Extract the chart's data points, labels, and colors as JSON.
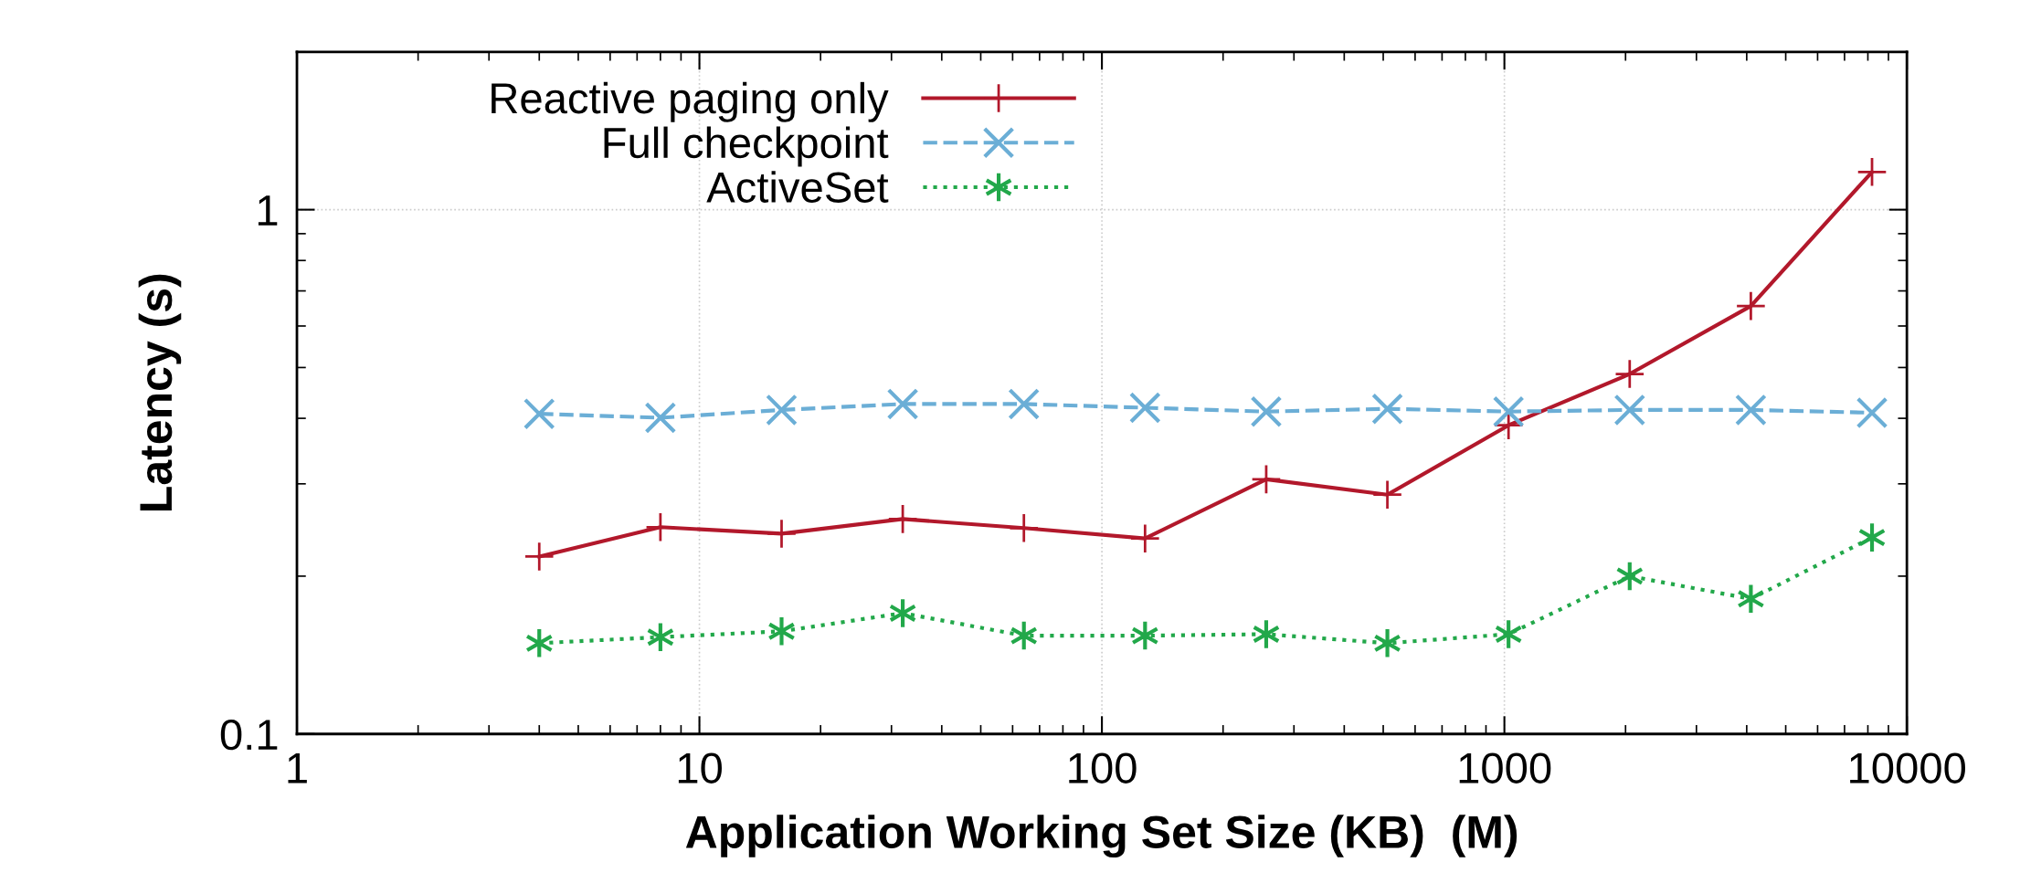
{
  "chart_data": {
    "type": "line",
    "xlabel": "Application Working Set Size (KB)  (M)",
    "ylabel": "Latency (s)",
    "x": [
      4,
      8,
      16,
      32,
      64,
      128,
      256,
      512,
      1024,
      2048,
      4096,
      8192
    ],
    "series": [
      {
        "name": "Reactive paging only",
        "color": "#b2182b",
        "marker": "cross",
        "line_style": "solid",
        "values": [
          0.218,
          0.248,
          0.241,
          0.257,
          0.247,
          0.236,
          0.306,
          0.286,
          0.388,
          0.486,
          0.655,
          1.18
        ]
      },
      {
        "name": "Full checkpoint",
        "color": "#6baed6",
        "marker": "cross",
        "line_style": "dashed",
        "values": [
          0.408,
          0.401,
          0.415,
          0.426,
          0.426,
          0.419,
          0.412,
          0.417,
          0.412,
          0.415,
          0.415,
          0.41
        ]
      },
      {
        "name": "ActiveSet",
        "color": "#22a84a",
        "marker": "cross",
        "line_style": "dotted",
        "values": [
          0.149,
          0.153,
          0.157,
          0.17,
          0.154,
          0.154,
          0.155,
          0.149,
          0.155,
          0.2,
          0.181,
          0.237
        ]
      }
    ],
    "log": "xy",
    "xlim": [
      1,
      10000
    ],
    "ylim": [
      0.1,
      2
    ],
    "xticks": [
      1,
      10,
      100,
      1000,
      10000
    ],
    "yticks": [
      0.1,
      1
    ],
    "grid": true,
    "legend": "top left"
  }
}
